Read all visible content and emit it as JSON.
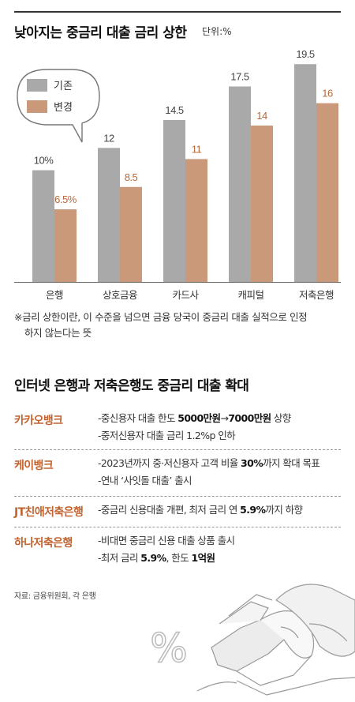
{
  "header": {
    "title": "낮아지는 중금리 대출 금리 상한",
    "unit": "단위:%"
  },
  "chart_data": {
    "type": "bar",
    "categories": [
      "은행",
      "상호금융",
      "카드사",
      "캐피털",
      "저축은행"
    ],
    "series": [
      {
        "name": "기존",
        "values": [
          10,
          12,
          14.5,
          17.5,
          19.5
        ],
        "labels": [
          "10%",
          "12",
          "14.5",
          "17.5",
          "19.5"
        ],
        "color": "#a9a9a9",
        "label_color": "#444444"
      },
      {
        "name": "변경",
        "values": [
          6.5,
          8.5,
          11,
          14,
          16
        ],
        "labels": [
          "6.5%",
          "8.5",
          "11",
          "14",
          "16"
        ],
        "color": "#c9997a",
        "label_color": "#b5683a"
      }
    ],
    "ylim": [
      0,
      21
    ],
    "legend_position": "top-left speech bubble",
    "grid": false
  },
  "footnote": {
    "line1": "※금리 상한이란, 이 수준을 넘으면 금융 당국이 중금리 대출 실적으로 인정",
    "line2": "하지 않는다는 뜻"
  },
  "section": {
    "title": "인터넷 은행과 저축은행도 중금리 대출 확대"
  },
  "banks": [
    {
      "name": "카카오뱅크",
      "lines": [
        [
          {
            "t": "-중신용자 대출 한도 "
          },
          {
            "t": "5000만원",
            "b": true
          },
          {
            "t": "→"
          },
          {
            "t": "7000만원",
            "b": true
          },
          {
            "t": " 상향"
          }
        ],
        [
          {
            "t": "-중저신용자 대출 금리 1.2%p 인하"
          }
        ]
      ]
    },
    {
      "name": "케이뱅크",
      "lines": [
        [
          {
            "t": "-2023년까지 중·저신용자 고객 비율 "
          },
          {
            "t": "30%",
            "b": true
          },
          {
            "t": "까지 확대 목표"
          }
        ],
        [
          {
            "t": "-연내 ‘사잇돌 대출’ 출시"
          }
        ]
      ]
    },
    {
      "name": "JT친애저축은행",
      "lines": [
        [
          {
            "t": "-중금리 신용대출 개편, 최저 금리 연 "
          },
          {
            "t": "5.9%",
            "b": true
          },
          {
            "t": "까지 하향"
          }
        ]
      ]
    },
    {
      "name": "하나저축은행",
      "lines": [
        [
          {
            "t": "-비대면 중금리 신용 대출 상품 출시"
          }
        ],
        [
          {
            "t": "-최저 금리 "
          },
          {
            "t": "5.9%",
            "b": true
          },
          {
            "t": ", 한도 "
          },
          {
            "t": "1억원",
            "b": true
          }
        ]
      ]
    }
  ],
  "source": "자료: 금융위원회, 각 은행",
  "illustration": {
    "symbol": "%",
    "icon": "hands-holding-money-icon"
  }
}
